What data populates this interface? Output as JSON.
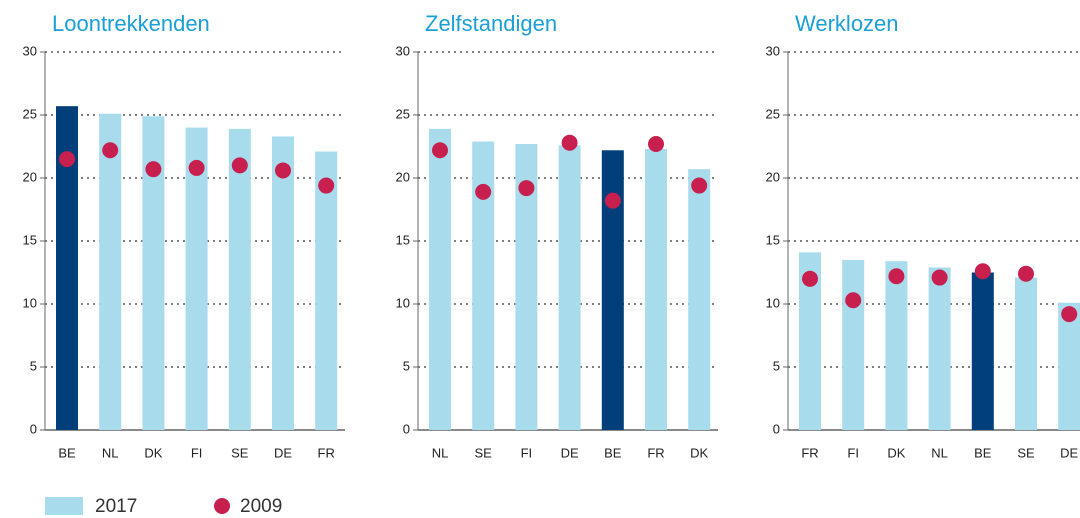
{
  "chart_data": [
    {
      "type": "bar_dot",
      "title": "Loontrekkenden",
      "categories": [
        "BE",
        "NL",
        "DK",
        "FI",
        "SE",
        "DE",
        "FR"
      ],
      "series": [
        {
          "name": "2017",
          "color": "#a8dcec",
          "colors": [
            "#003f7a",
            "#a8dcec",
            "#a8dcec",
            "#a8dcec",
            "#a8dcec",
            "#a8dcec",
            "#a8dcec"
          ],
          "values": [
            25.7,
            25.1,
            24.9,
            24.0,
            23.9,
            23.3,
            22.1
          ]
        },
        {
          "name": "2009",
          "color": "#c7204f",
          "values": [
            21.5,
            22.2,
            20.7,
            20.8,
            21.0,
            20.6,
            19.4
          ]
        }
      ],
      "ylim": [
        0,
        30
      ],
      "yticks": [
        0,
        5,
        10,
        15,
        20,
        25,
        30
      ],
      "grid": true
    },
    {
      "type": "bar_dot",
      "title": "Zelfstandigen",
      "categories": [
        "NL",
        "SE",
        "FI",
        "DE",
        "BE",
        "FR",
        "DK"
      ],
      "series": [
        {
          "name": "2017",
          "color": "#a8dcec",
          "colors": [
            "#a8dcec",
            "#a8dcec",
            "#a8dcec",
            "#a8dcec",
            "#003f7a",
            "#a8dcec",
            "#a8dcec"
          ],
          "values": [
            23.9,
            22.9,
            22.7,
            22.6,
            22.2,
            22.3,
            20.7
          ]
        },
        {
          "name": "2009",
          "color": "#c7204f",
          "values": [
            22.2,
            18.9,
            19.2,
            22.8,
            18.2,
            22.7,
            19.4
          ]
        }
      ],
      "ylim": [
        0,
        30
      ],
      "yticks": [
        0,
        5,
        10,
        15,
        20,
        25,
        30
      ],
      "grid": true
    },
    {
      "type": "bar_dot",
      "title": "Werklozen",
      "categories": [
        "FR",
        "FI",
        "DK",
        "NL",
        "BE",
        "SE",
        "DE"
      ],
      "series": [
        {
          "name": "2017",
          "color": "#a8dcec",
          "colors": [
            "#a8dcec",
            "#a8dcec",
            "#a8dcec",
            "#a8dcec",
            "#003f7a",
            "#a8dcec",
            "#a8dcec"
          ],
          "values": [
            14.1,
            13.5,
            13.4,
            12.9,
            12.5,
            12.1,
            10.1
          ]
        },
        {
          "name": "2009",
          "color": "#c7204f",
          "values": [
            12.0,
            10.3,
            12.2,
            12.1,
            12.6,
            12.4,
            9.2
          ]
        }
      ],
      "ylim": [
        0,
        30
      ],
      "yticks": [
        0,
        5,
        10,
        15,
        20,
        25,
        30
      ],
      "grid": true
    }
  ]
}
